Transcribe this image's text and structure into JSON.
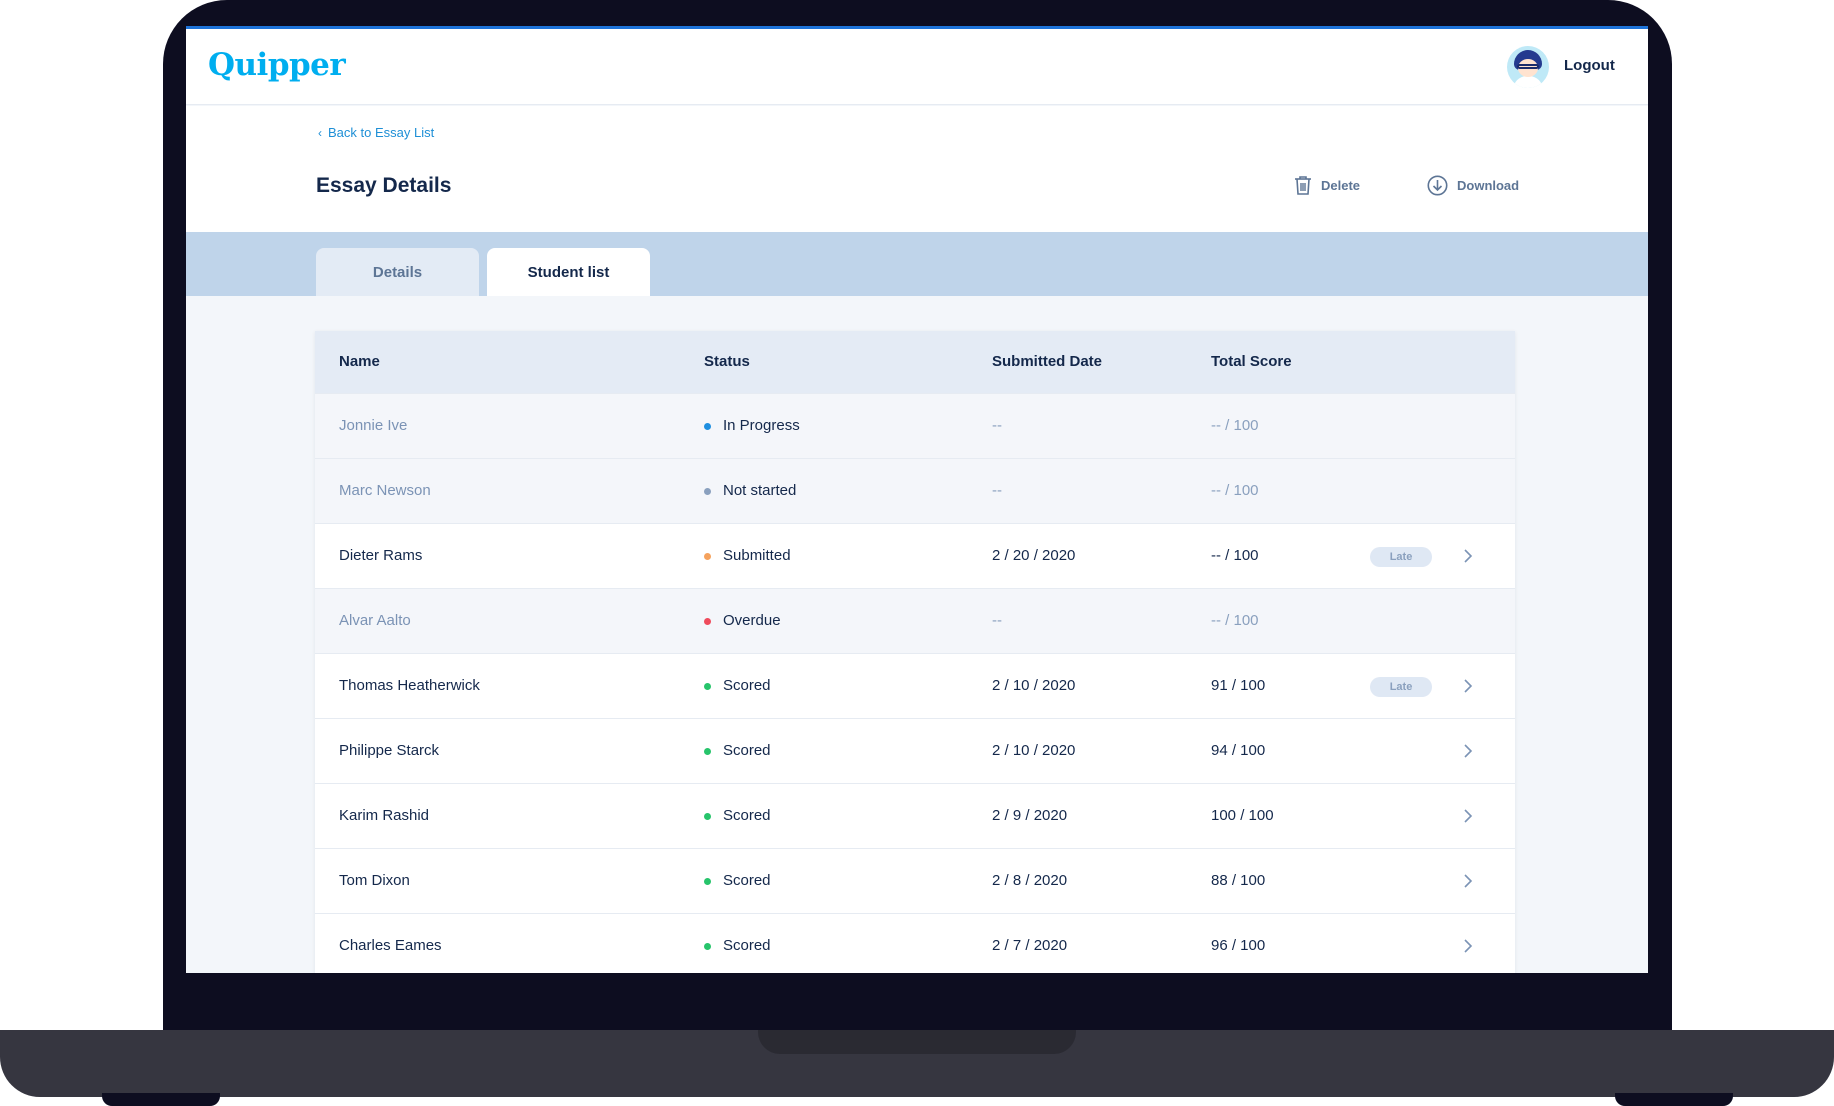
{
  "app": {
    "logo": "Quipper"
  },
  "header": {
    "logout_label": "Logout"
  },
  "page": {
    "back_label": "Back to Essay List",
    "title": "Essay Details",
    "delete_label": "Delete",
    "download_label": "Download"
  },
  "tabs": [
    {
      "label": "Details",
      "active": false
    },
    {
      "label": "Student list",
      "active": true
    }
  ],
  "table": {
    "columns": [
      "Name",
      "Status",
      "Submitted Date",
      "Total Score"
    ],
    "late_label": "Late",
    "status_colors": {
      "In Progress": "#1e8fe0",
      "Not started": "#8aa0be",
      "Submitted": "#f5a25d",
      "Overdue": "#ef4b5c",
      "Scored": "#27c46b"
    },
    "rows": [
      {
        "name": "Jonnie Ive",
        "status": "In Progress",
        "date": "--",
        "score": "-- / 100"
      },
      {
        "name": "Marc Newson",
        "status": "Not started",
        "date": "--",
        "score": "-- / 100"
      },
      {
        "name": "Dieter Rams",
        "status": "Submitted",
        "date": "2 / 20 / 2020",
        "score": "-- / 100",
        "late": true
      },
      {
        "name": "Alvar Aalto",
        "status": "Overdue",
        "date": "--",
        "score": "-- / 100"
      },
      {
        "name": "Thomas Heatherwick",
        "status": "Scored",
        "date": "2 / 10 / 2020",
        "score": "91 / 100",
        "late": true
      },
      {
        "name": "Philippe Starck",
        "status": "Scored",
        "date": "2 / 10 / 2020",
        "score": "94 / 100"
      },
      {
        "name": "Karim Rashid",
        "status": "Scored",
        "date": "2 / 9 / 2020",
        "score": "100 / 100"
      },
      {
        "name": "Tom Dixon",
        "status": "Scored",
        "date": "2 / 8 / 2020",
        "score": "88 / 100"
      },
      {
        "name": "Charles Eames",
        "status": "Scored",
        "date": "2 / 7 / 2020",
        "score": "96 / 100"
      }
    ]
  },
  "icons": {
    "back": "chevron-left-icon",
    "delete": "trash-icon",
    "download": "download-icon",
    "row_open": "chevron-right-icon"
  }
}
